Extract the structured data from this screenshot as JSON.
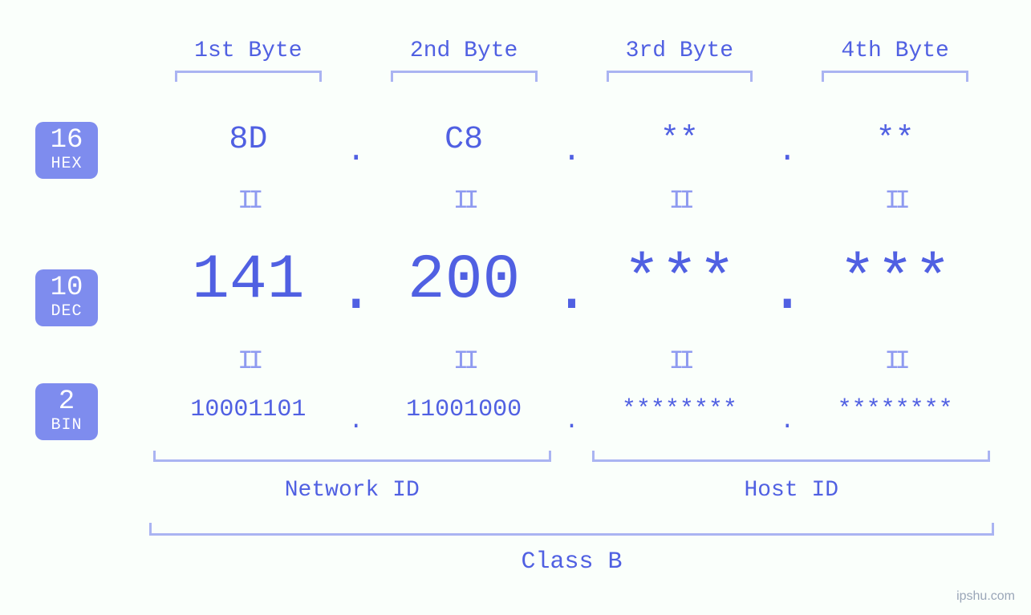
{
  "colors": {
    "background": "#fafffb",
    "accent": "#5060e2",
    "accent_light": "#8e9af0",
    "badge_bg": "#7e8cee",
    "badge_text": "#ffffff",
    "bracket": "#aab4f2"
  },
  "bytes": {
    "labels": [
      "1st Byte",
      "2nd Byte",
      "3rd Byte",
      "4th Byte"
    ],
    "label_fontsize": 28
  },
  "separator": ".",
  "equals_glyph": "II",
  "badges": {
    "hex": {
      "num": "16",
      "label": "HEX"
    },
    "dec": {
      "num": "10",
      "label": "DEC"
    },
    "bin": {
      "num": "2",
      "label": "BIN"
    }
  },
  "rows": {
    "hex": {
      "values": [
        "8D",
        "C8",
        "**",
        "**"
      ],
      "fontsize": 40
    },
    "dec": {
      "values": [
        "141",
        "200",
        "***",
        "***"
      ],
      "fontsize": 78
    },
    "bin": {
      "values": [
        "10001101",
        "11001000",
        "********",
        "********"
      ],
      "fontsize": 30
    }
  },
  "groups": {
    "network": {
      "label": "Network ID",
      "span_bytes": [
        0,
        1
      ]
    },
    "host": {
      "label": "Host ID",
      "span_bytes": [
        2,
        3
      ]
    }
  },
  "class_label": "Class B",
  "watermark": "ipshu.com"
}
